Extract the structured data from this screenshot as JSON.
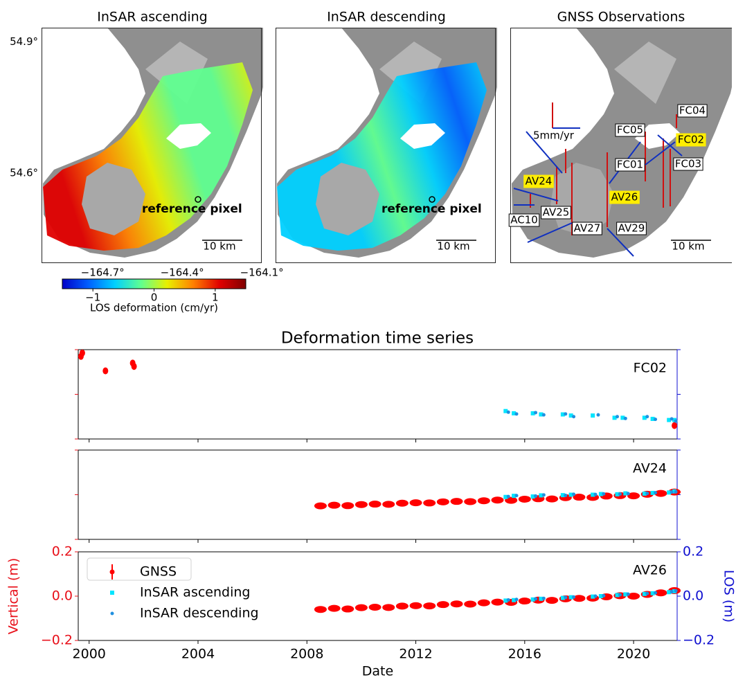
{
  "figure": {
    "panels": [
      {
        "title": "InSAR ascending"
      },
      {
        "title": "InSAR descending"
      },
      {
        "title": "GNSS Observations"
      }
    ],
    "annotation": "reference pixel",
    "scale_bar": "10 km",
    "velocity_scale": "5mm/yr",
    "lat_lim": [
      54.395,
      54.932
    ],
    "lat_ticks": [
      {
        "value": 54.9,
        "label": "54.9°"
      },
      {
        "value": 54.6,
        "label": "54.6°"
      }
    ],
    "lon_lim": [
      -164.93,
      -164.095
    ],
    "lon_ticks": [
      {
        "value": -164.7,
        "label": "−164.7°"
      },
      {
        "value": -164.4,
        "label": "−164.4°"
      },
      {
        "value": -164.1,
        "label": "−164.1°"
      }
    ],
    "colorbar": {
      "label": "LOS deformation (cm/yr)",
      "lim": [
        -1.5,
        1.5
      ],
      "ticks": [
        {
          "value": -1,
          "label": "−1"
        },
        0,
        1
      ],
      "colors": [
        "#0000c8",
        "#0060ff",
        "#00d0ff",
        "#60ff90",
        "#e8f000",
        "#ff8000",
        "#e00000",
        "#800000"
      ]
    },
    "stations": [
      {
        "label": "FC04",
        "highlight": false
      },
      {
        "label": "FC05",
        "highlight": false
      },
      {
        "label": "FC02",
        "highlight": true
      },
      {
        "label": "FC01",
        "highlight": false
      },
      {
        "label": "FC03",
        "highlight": false
      },
      {
        "label": "AV24",
        "highlight": true
      },
      {
        "label": "AV26",
        "highlight": true
      },
      {
        "label": "AV25",
        "highlight": false
      },
      {
        "label": "AC10",
        "highlight": false
      },
      {
        "label": "AV27",
        "highlight": false
      },
      {
        "label": "AV29",
        "highlight": false
      }
    ]
  },
  "chart_data": {
    "type": "scatter",
    "title": "Deformation time series",
    "x_label": "Date",
    "y_label": "Vertical (m)",
    "y2_label": "LOS (m)",
    "xlim": [
      1999.6,
      2021.6
    ],
    "xticks": [
      2000,
      2004,
      2008,
      2012,
      2016,
      2020
    ],
    "ylim": [
      -0.2,
      0.2
    ],
    "yticks": [
      0.2,
      {
        "value": 0.0,
        "label": "0.0"
      },
      {
        "value": -0.2,
        "label": "−0.2"
      }
    ],
    "y2lim": [
      -0.2,
      0.2
    ],
    "y2ticks": [
      0.2,
      {
        "value": 0.0,
        "label": "0.0"
      },
      {
        "value": -0.2,
        "label": "−0.2"
      }
    ],
    "y_color": "#e8101a",
    "y2_color": "#1010d0",
    "series": [
      {
        "name": "GNSS",
        "color": "#ff0000",
        "marker": "errorbar"
      },
      {
        "name": "InSAR ascending",
        "color": "#00e5ff",
        "marker": "square",
        "axis": "y2"
      },
      {
        "name": "InSAR descending",
        "color": "#2090e0",
        "marker": "dot",
        "axis": "y2"
      }
    ],
    "panels": [
      {
        "label": "FC02",
        "data": [
          {
            "x": [
              1999.7,
              1999.75,
              2000.6,
              2001.6,
              2001.65,
              2021.5
            ],
            "y": [
              0.17,
              0.185,
              0.105,
              0.14,
              0.125,
              -0.14
            ]
          },
          {
            "x": [
              2015.3,
              2015.6,
              2016.3,
              2016.6,
              2017.4,
              2017.7,
              2018.5,
              2019.3,
              2019.6,
              2020.4,
              2020.7,
              2021.3,
              2021.5
            ],
            "y": [
              -0.075,
              -0.085,
              -0.085,
              -0.09,
              -0.09,
              -0.095,
              -0.095,
              -0.105,
              -0.105,
              -0.105,
              -0.11,
              -0.115,
              -0.115
            ]
          },
          {
            "x": [
              2015.4,
              2015.7,
              2016.4,
              2016.7,
              2017.5,
              2017.8,
              2018.7,
              2019.4,
              2019.7,
              2020.5,
              2020.8,
              2021.4,
              2021.55
            ],
            "y": [
              -0.08,
              -0.088,
              -0.082,
              -0.092,
              -0.088,
              -0.1,
              -0.092,
              -0.1,
              -0.108,
              -0.1,
              -0.112,
              -0.11,
              -0.12
            ]
          }
        ]
      },
      {
        "label": "AV24",
        "data": [
          {
            "x": [
              2008.5,
              2009,
              2009.5,
              2010,
              2010.5,
              2011,
              2011.5,
              2012,
              2012.5,
              2013,
              2013.5,
              2014,
              2014.5,
              2015,
              2015.5,
              2016,
              2016.5,
              2017,
              2017.5,
              2018,
              2018.5,
              2019,
              2019.5,
              2020,
              2020.5,
              2021,
              2021.5
            ],
            "y": [
              -0.05,
              -0.047,
              -0.049,
              -0.044,
              -0.042,
              -0.043,
              -0.038,
              -0.036,
              -0.037,
              -0.032,
              -0.03,
              -0.031,
              -0.027,
              -0.024,
              -0.025,
              -0.02,
              -0.018,
              -0.019,
              -0.013,
              -0.011,
              -0.012,
              -0.006,
              -0.004,
              -0.005,
              0.002,
              0.006,
              0.012
            ]
          },
          {
            "x": [
              2015.3,
              2015.6,
              2016.3,
              2016.6,
              2017.4,
              2017.7,
              2018.5,
              2018.8,
              2019.4,
              2019.7,
              2020.4,
              2020.7,
              2021.3,
              2021.5
            ],
            "y": [
              -0.01,
              -0.005,
              -0.008,
              -0.003,
              -0.002,
              0.0,
              0.0,
              0.003,
              0.002,
              0.006,
              0.005,
              0.008,
              0.01,
              0.015
            ]
          },
          {
            "x": [
              2015.4,
              2015.7,
              2016.4,
              2016.7,
              2017.5,
              2017.8,
              2018.6,
              2018.9,
              2019.5,
              2019.8,
              2020.5,
              2020.8,
              2021.4,
              2021.55
            ],
            "y": [
              -0.008,
              -0.004,
              -0.006,
              -0.001,
              -0.003,
              0.002,
              0.001,
              0.004,
              0.003,
              0.005,
              0.006,
              0.009,
              0.012,
              0.013
            ]
          }
        ]
      },
      {
        "label": "AV26",
        "data": [
          {
            "x": [
              2008.5,
              2009,
              2009.5,
              2010,
              2010.5,
              2011,
              2011.5,
              2012,
              2012.5,
              2013,
              2013.5,
              2014,
              2014.5,
              2015,
              2015.5,
              2016,
              2016.5,
              2017,
              2017.5,
              2018,
              2018.5,
              2019,
              2019.5,
              2020,
              2020.5,
              2021,
              2021.5
            ],
            "y": [
              -0.06,
              -0.055,
              -0.058,
              -0.052,
              -0.05,
              -0.051,
              -0.045,
              -0.043,
              -0.044,
              -0.038,
              -0.035,
              -0.036,
              -0.03,
              -0.027,
              -0.028,
              -0.022,
              -0.018,
              -0.019,
              -0.012,
              -0.01,
              -0.009,
              -0.003,
              0.002,
              0.0,
              0.008,
              0.015,
              0.025
            ]
          },
          {
            "x": [
              2015.3,
              2015.6,
              2016.3,
              2016.6,
              2017.4,
              2017.7,
              2018.5,
              2018.8,
              2019.4,
              2019.7,
              2020.4,
              2020.7,
              2021.3,
              2021.5
            ],
            "y": [
              -0.02,
              -0.018,
              -0.015,
              -0.012,
              -0.008,
              -0.005,
              -0.002,
              0.0,
              0.005,
              0.008,
              0.01,
              0.013,
              0.018,
              0.022
            ]
          },
          {
            "x": [
              2015.4,
              2015.7,
              2016.4,
              2016.7,
              2017.5,
              2017.8,
              2018.6,
              2018.9,
              2019.5,
              2019.8,
              2020.5,
              2020.8,
              2021.4,
              2021.55
            ],
            "y": [
              -0.017,
              -0.015,
              -0.012,
              -0.01,
              -0.006,
              -0.004,
              0.0,
              0.002,
              0.006,
              0.009,
              0.012,
              0.015,
              0.02,
              0.024
            ]
          }
        ]
      }
    ]
  }
}
